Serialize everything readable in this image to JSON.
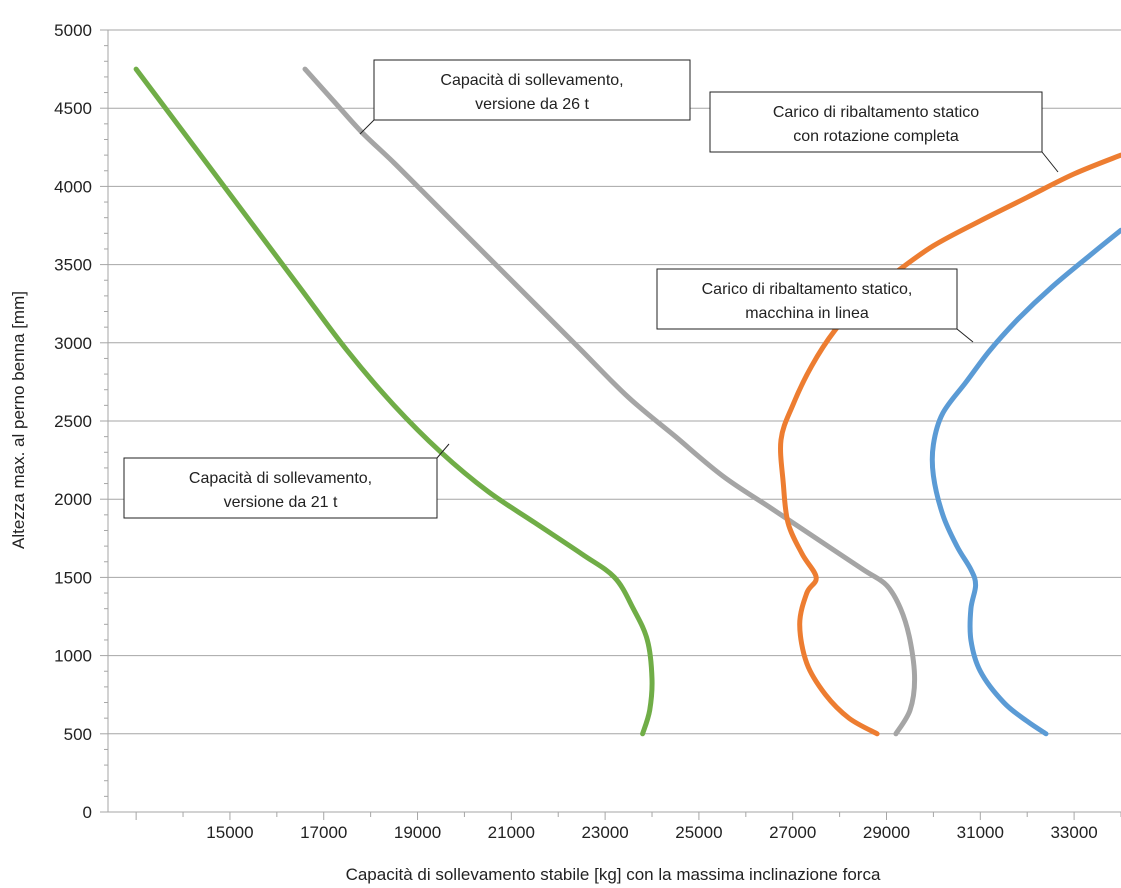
{
  "chart_data": {
    "type": "line",
    "xlabel": "Capacità di sollevamento stabile [kg] con la massima inclinazione forca",
    "ylabel": "Altezza max. al perno benna [mm]",
    "xlim": [
      12400,
      34000
    ],
    "ylim": [
      0,
      5000
    ],
    "x_ticks": [
      15000,
      17000,
      19000,
      21000,
      23000,
      25000,
      27000,
      29000,
      31000,
      33000
    ],
    "y_ticks": [
      0,
      500,
      1000,
      1500,
      2000,
      2500,
      3000,
      3500,
      4000,
      4500,
      5000
    ],
    "grid": "horizontal",
    "series": [
      {
        "color": "#70ad47",
        "points": [
          [
            13000,
            4750
          ],
          [
            13500,
            4550
          ],
          [
            14500,
            4150
          ],
          [
            15500,
            3750
          ],
          [
            16500,
            3350
          ],
          [
            17500,
            2950
          ],
          [
            18500,
            2600
          ],
          [
            19500,
            2300
          ],
          [
            20500,
            2050
          ],
          [
            21500,
            1850
          ],
          [
            22500,
            1650
          ],
          [
            23200,
            1500
          ],
          [
            23600,
            1300
          ],
          [
            23900,
            1100
          ],
          [
            24000,
            850
          ],
          [
            23950,
            650
          ],
          [
            23800,
            500
          ]
        ]
      },
      {
        "color": "#a5a5a5",
        "points": [
          [
            16600,
            4750
          ],
          [
            17200,
            4550
          ],
          [
            17800,
            4350
          ],
          [
            18500,
            4150
          ],
          [
            19500,
            3850
          ],
          [
            20500,
            3550
          ],
          [
            21500,
            3250
          ],
          [
            22500,
            2950
          ],
          [
            23500,
            2650
          ],
          [
            24500,
            2400
          ],
          [
            25500,
            2150
          ],
          [
            26500,
            1950
          ],
          [
            27500,
            1750
          ],
          [
            28500,
            1550
          ],
          [
            29000,
            1450
          ],
          [
            29300,
            1300
          ],
          [
            29500,
            1100
          ],
          [
            29600,
            850
          ],
          [
            29500,
            650
          ],
          [
            29200,
            500
          ]
        ]
      },
      {
        "color": "#ed7d31",
        "points": [
          [
            34000,
            4200
          ],
          [
            33000,
            4080
          ],
          [
            32000,
            3930
          ],
          [
            31000,
            3780
          ],
          [
            30000,
            3620
          ],
          [
            29200,
            3450
          ],
          [
            28500,
            3280
          ],
          [
            27900,
            3080
          ],
          [
            27400,
            2850
          ],
          [
            27000,
            2600
          ],
          [
            26750,
            2380
          ],
          [
            26800,
            2100
          ],
          [
            26900,
            1850
          ],
          [
            27200,
            1650
          ],
          [
            27500,
            1500
          ],
          [
            27300,
            1400
          ],
          [
            27150,
            1200
          ],
          [
            27300,
            950
          ],
          [
            27700,
            750
          ],
          [
            28200,
            600
          ],
          [
            28800,
            500
          ]
        ]
      },
      {
        "color": "#5b9bd5",
        "points": [
          [
            34000,
            3720
          ],
          [
            33300,
            3550
          ],
          [
            32500,
            3350
          ],
          [
            31800,
            3150
          ],
          [
            31200,
            2950
          ],
          [
            30700,
            2750
          ],
          [
            30200,
            2550
          ],
          [
            30000,
            2350
          ],
          [
            30000,
            2150
          ],
          [
            30200,
            1900
          ],
          [
            30500,
            1700
          ],
          [
            30800,
            1550
          ],
          [
            30900,
            1450
          ],
          [
            30800,
            1300
          ],
          [
            30800,
            1100
          ],
          [
            31000,
            900
          ],
          [
            31500,
            700
          ],
          [
            32000,
            580
          ],
          [
            32400,
            500
          ]
        ]
      }
    ],
    "annotations": [
      {
        "line1": "Capacità di sollevamento,",
        "line2": "versione da 26 t"
      },
      {
        "line1": "Carico di ribaltamento statico",
        "line2": "con rotazione completa"
      },
      {
        "line1": "Carico di ribaltamento statico,",
        "line2": "macchina in linea"
      },
      {
        "line1": "Capacità di sollevamento,",
        "line2": "versione da 21 t"
      }
    ]
  }
}
